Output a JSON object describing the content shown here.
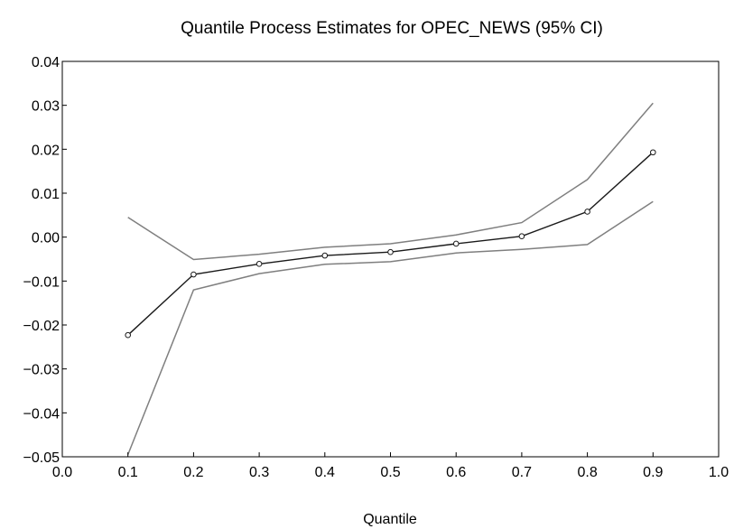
{
  "chart_data": {
    "type": "line",
    "title": "Quantile Process Estimates for OPEC_NEWS (95% CI)",
    "xlabel": "Quantile",
    "ylabel": "",
    "xlim": [
      0.0,
      1.0
    ],
    "ylim": [
      -0.05,
      0.04
    ],
    "x_ticks": [
      "0.0",
      "0.1",
      "0.2",
      "0.3",
      "0.4",
      "0.5",
      "0.6",
      "0.7",
      "0.8",
      "0.9",
      "1.0"
    ],
    "y_ticks": [
      "0.04",
      "0.03",
      "0.02",
      "0.01",
      "0.00",
      "−0.01",
      "−0.02",
      "−0.03",
      "−0.04",
      "−0.05"
    ],
    "x": [
      0.1,
      0.2,
      0.3,
      0.4,
      0.5,
      0.6,
      0.7,
      0.8,
      0.9
    ],
    "series": [
      {
        "role": "upper",
        "color": "#7f7f7f",
        "values": [
          0.0045,
          -0.0051,
          -0.0039,
          -0.0023,
          -0.0015,
          0.0005,
          0.0033,
          0.0131,
          0.0305
        ]
      },
      {
        "role": "estimate",
        "color": "#1a1a1a",
        "marker": "circle",
        "values": [
          -0.0223,
          -0.0085,
          -0.0061,
          -0.0042,
          -0.0034,
          -0.0015,
          0.0002,
          0.0058,
          0.0193
        ]
      },
      {
        "role": "lower",
        "color": "#7f7f7f",
        "values": [
          -0.0495,
          -0.012,
          -0.0083,
          -0.0062,
          -0.0056,
          -0.0036,
          -0.0028,
          -0.0017,
          0.0081
        ]
      }
    ],
    "grid": false,
    "legend": "none"
  }
}
